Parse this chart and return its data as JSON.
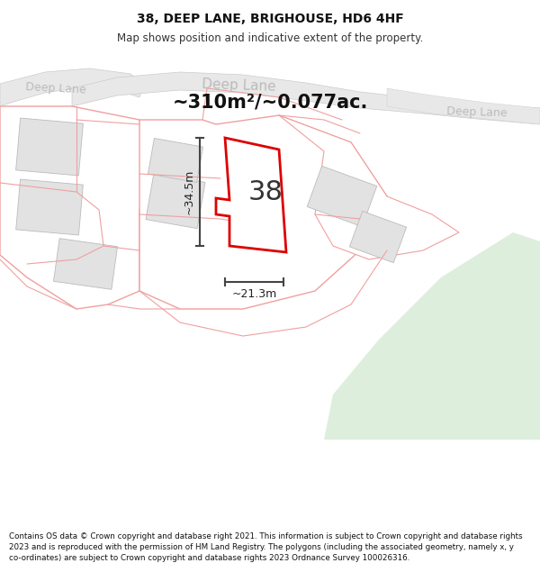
{
  "title": "38, DEEP LANE, BRIGHOUSE, HD6 4HF",
  "subtitle": "Map shows position and indicative extent of the property.",
  "area_text": "~310m²/~0.077ac.",
  "width_label": "~21.3m",
  "height_label": "~34.5m",
  "number_label": "38",
  "footer": "Contains OS data © Crown copyright and database right 2021. This information is subject to Crown copyright and database rights 2023 and is reproduced with the permission of HM Land Registry. The polygons (including the associated geometry, namely x, y co-ordinates) are subject to Crown copyright and database rights 2023 Ordnance Survey 100026316.",
  "bg_color": "#ffffff",
  "map_bg": "#f7f7f7",
  "property_outline_color": "#dd0000",
  "other_outline_color": "#f0a0a0",
  "green_area_color": "#ddeedd",
  "road_fill": "#e8e8e8",
  "road_outline": "#cccccc",
  "block_fill": "#e2e2e2",
  "dim_line_color": "#444444",
  "road_text_color": "#bbbbbb",
  "title_fontsize": 10,
  "subtitle_fontsize": 8.5,
  "area_fontsize": 15,
  "number_fontsize": 22,
  "dim_fontsize": 9,
  "footer_fontsize": 6.3
}
